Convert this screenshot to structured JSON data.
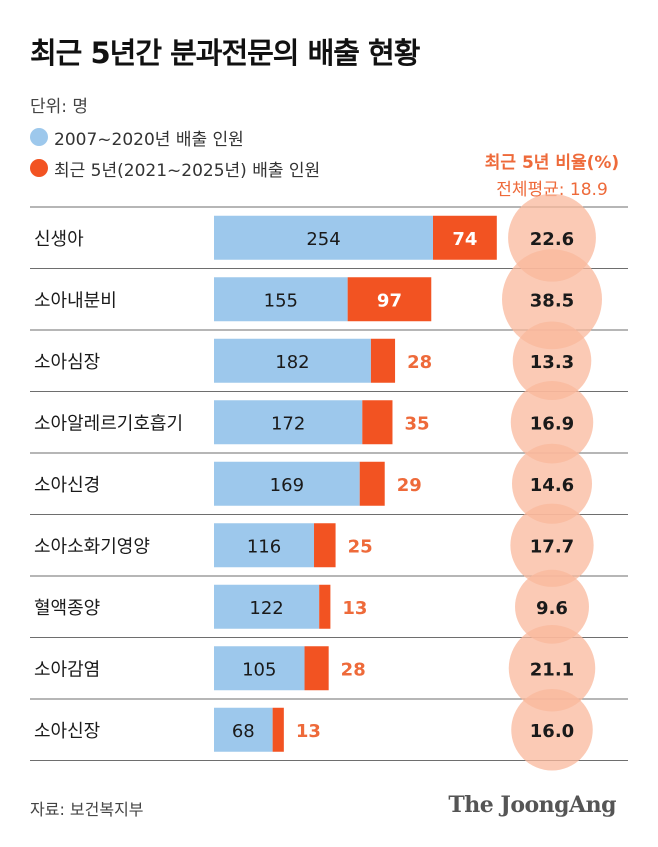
{
  "title": "최근 5년간 분과전문의 배출 현황",
  "unit": "단위: 명",
  "legend": [
    {
      "label": "2007~2020년 배출 인원",
      "color": "#9dc8ec"
    },
    {
      "label": "최근 5년(2021~2025년) 배출 인원",
      "color": "#f25322"
    }
  ],
  "ratio_title": "최근 5년 비율(%)",
  "ratio_avg": "전체평균: 18.9",
  "source": "자료: 보건복지부",
  "logo": "The JoongAng",
  "colors": {
    "past": "#9dc8ec",
    "recent": "#f25322",
    "recent_text": "#ee6a3a",
    "circle": "#f9b89c",
    "row_line": "#6e6e6e"
  },
  "chart_data": {
    "type": "bar",
    "stacked": true,
    "orientation": "horizontal",
    "categories": [
      "신생아",
      "소아내분비",
      "소아심장",
      "소아알레르기호흡기",
      "소아신경",
      "소아소화기영양",
      "혈액종양",
      "소아감염",
      "소아신장"
    ],
    "series": [
      {
        "name": "2007~2020년 배출 인원",
        "values": [
          254,
          155,
          182,
          172,
          169,
          116,
          122,
          105,
          68
        ]
      },
      {
        "name": "최근 5년(2021~2025년) 배출 인원",
        "values": [
          74,
          97,
          28,
          35,
          29,
          25,
          13,
          28,
          13
        ]
      }
    ],
    "ratio_title": "최근 5년 비율(%)",
    "ratio_values": [
      "22.6",
      "38.5",
      "13.3",
      "16.9",
      "14.6",
      "17.7",
      "9.6",
      "21.1",
      "16.0"
    ],
    "average_ratio": 18.9
  }
}
